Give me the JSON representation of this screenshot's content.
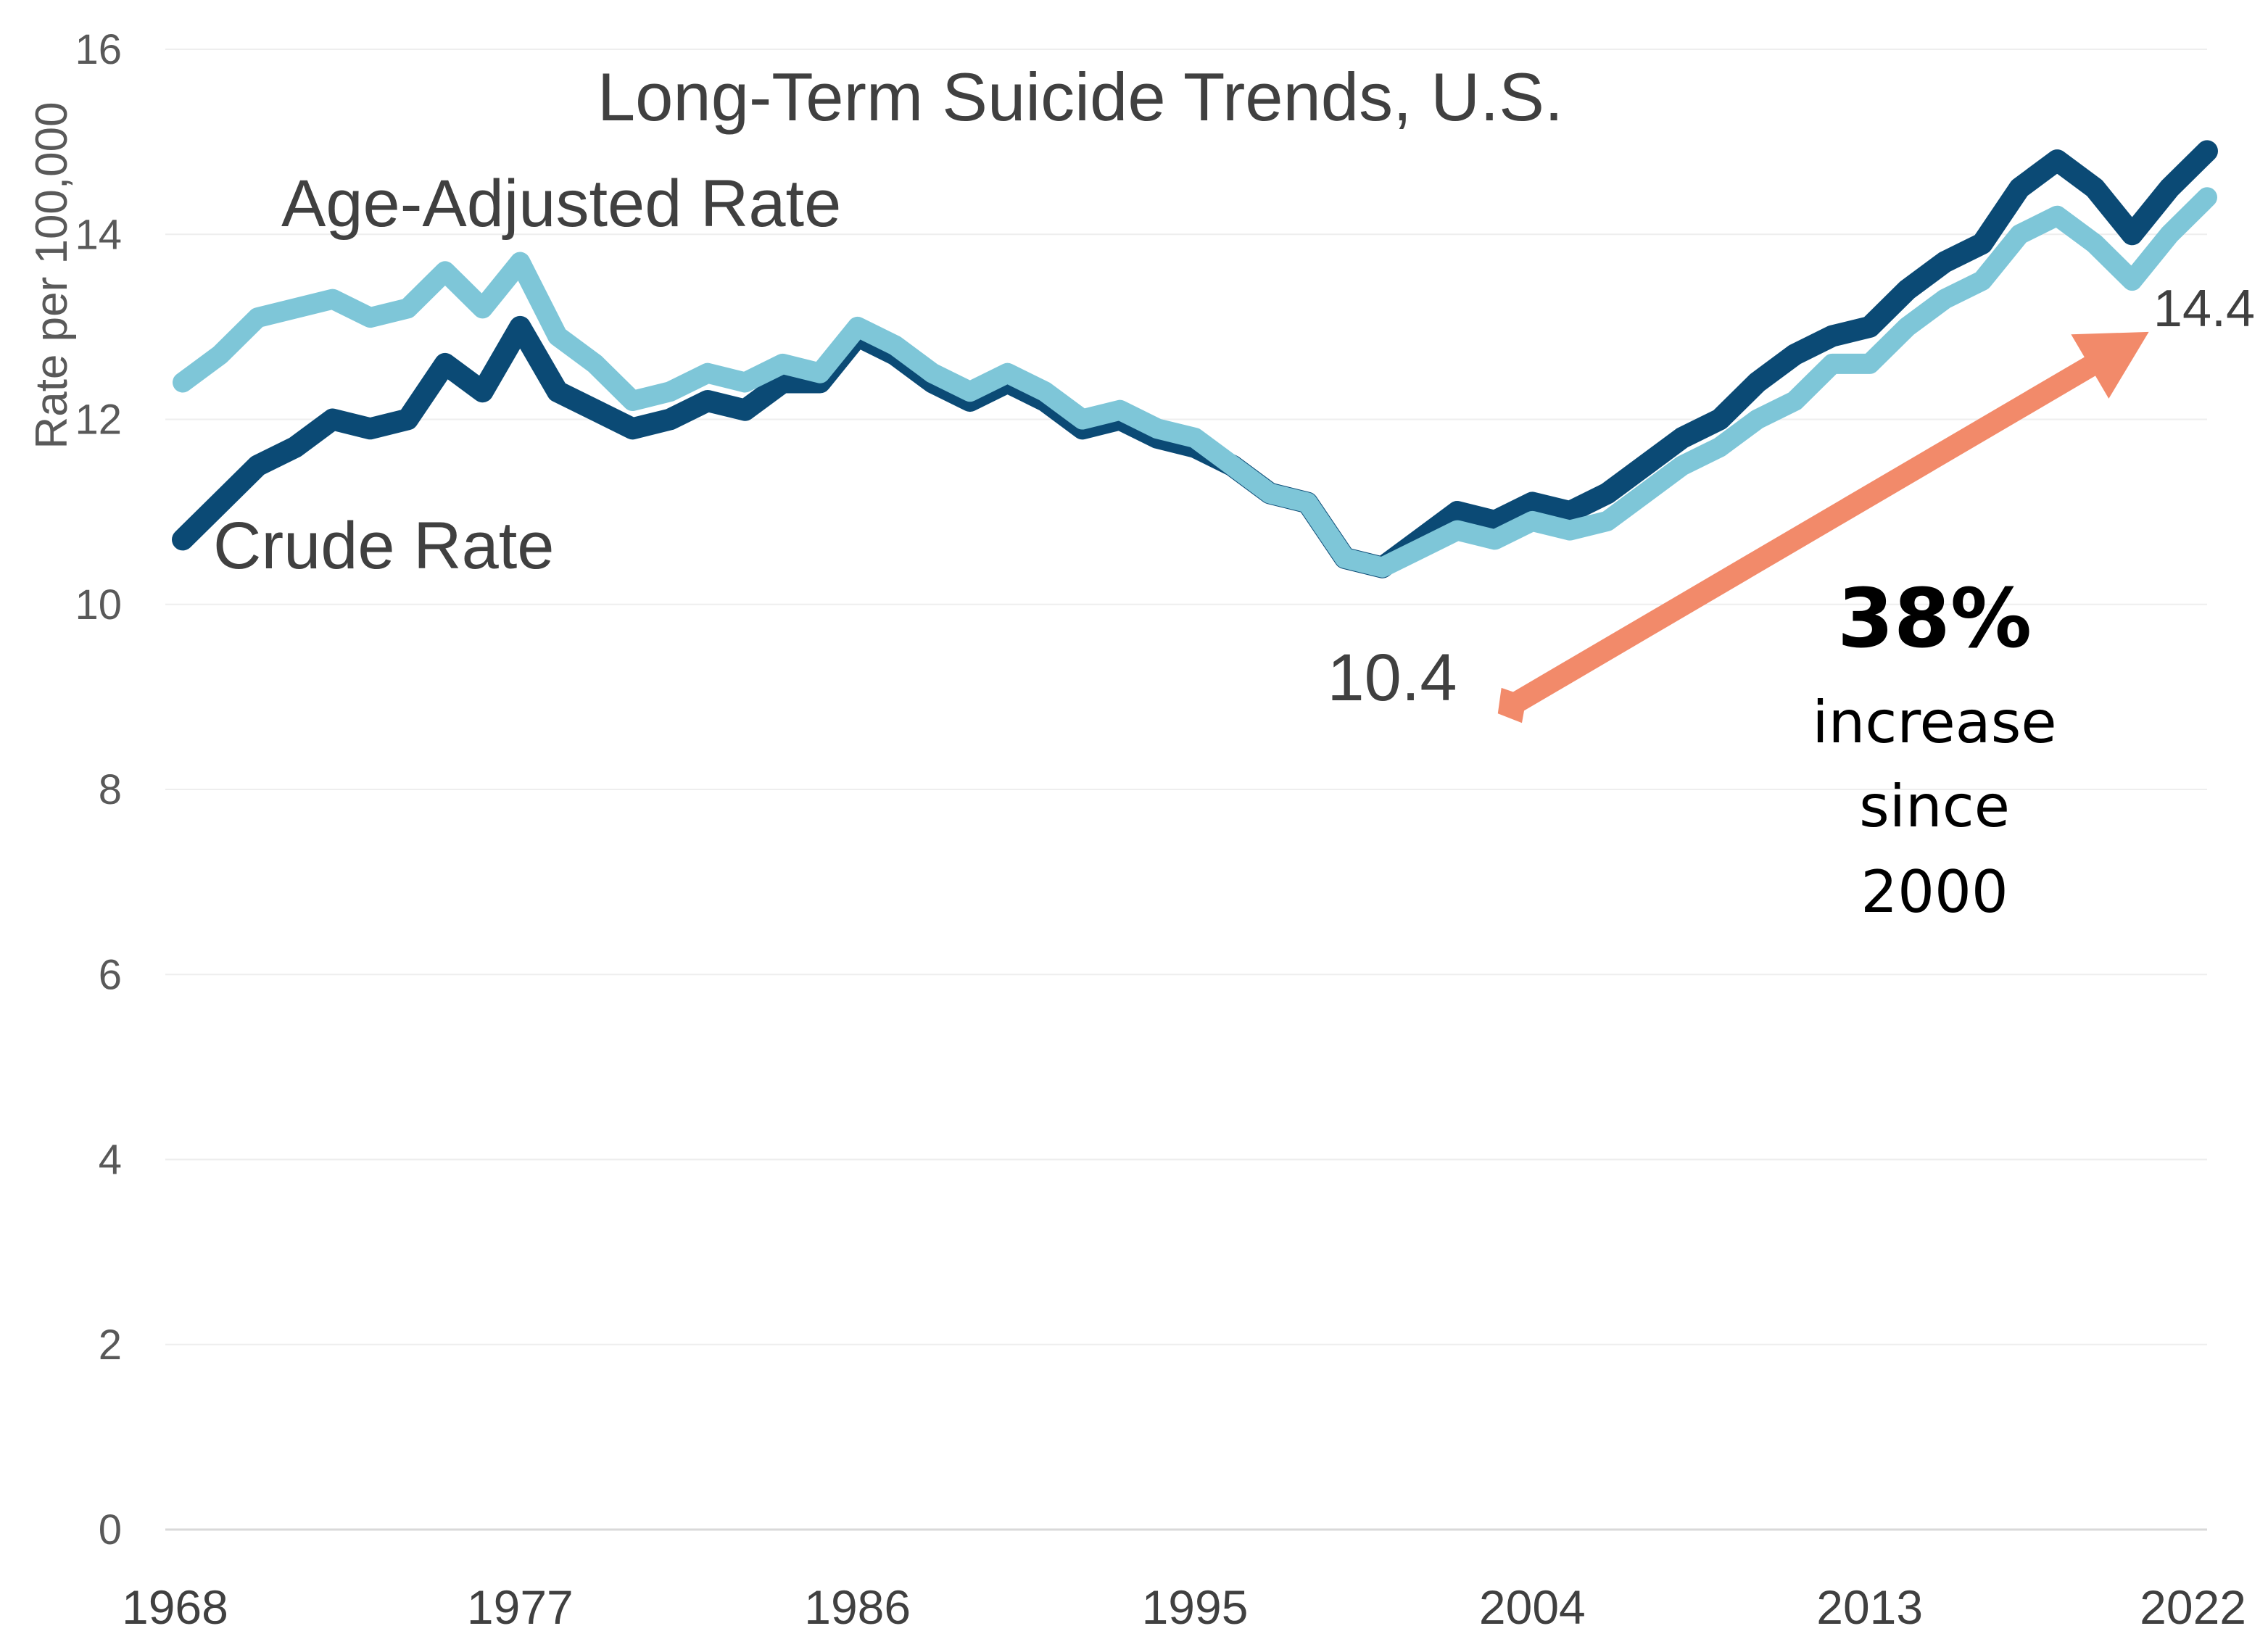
{
  "chart_data": {
    "type": "line",
    "title": "Long-Term Suicide Trends, U.S.",
    "xlabel": "",
    "ylabel": "Rate per 100,000",
    "xlim": [
      1968,
      2022
    ],
    "ylim": [
      0,
      16
    ],
    "x_ticks": [
      "1968",
      "1977",
      "1986",
      "1995",
      "2004",
      "2013",
      "2022"
    ],
    "y_ticks": [
      "0",
      "2",
      "4",
      "6",
      "8",
      "10",
      "12",
      "14",
      "16"
    ],
    "grid": "horizontal",
    "legend": "none",
    "x": [
      1968,
      1969,
      1970,
      1971,
      1972,
      1973,
      1974,
      1975,
      1976,
      1977,
      1978,
      1979,
      1980,
      1981,
      1982,
      1983,
      1984,
      1985,
      1986,
      1987,
      1988,
      1989,
      1990,
      1991,
      1992,
      1993,
      1994,
      1995,
      1996,
      1997,
      1998,
      1999,
      2000,
      2001,
      2002,
      2003,
      2004,
      2005,
      2006,
      2007,
      2008,
      2009,
      2010,
      2011,
      2012,
      2013,
      2014,
      2015,
      2016,
      2017,
      2018,
      2019,
      2020,
      2021,
      2022
    ],
    "series": [
      {
        "name": "Crude Rate",
        "color": "#0b4a75",
        "values": [
          10.7,
          11.1,
          11.5,
          11.7,
          12.0,
          11.9,
          12.0,
          12.6,
          12.3,
          13.0,
          12.3,
          12.1,
          11.9,
          12.0,
          12.2,
          12.1,
          12.4,
          12.4,
          12.9,
          12.7,
          12.4,
          12.2,
          12.4,
          12.2,
          11.9,
          12.0,
          11.8,
          11.7,
          11.5,
          11.2,
          11.1,
          10.5,
          10.4,
          10.7,
          11.0,
          10.9,
          11.1,
          11.0,
          11.2,
          11.5,
          11.8,
          12.0,
          12.4,
          12.7,
          12.9,
          13.0,
          13.4,
          13.7,
          13.9,
          14.5,
          14.8,
          14.5,
          14.0,
          14.5,
          14.9
        ]
      },
      {
        "name": "Age-Adjusted Rate",
        "color": "#7ec6d8",
        "values": [
          12.4,
          12.7,
          13.1,
          13.2,
          13.3,
          13.1,
          13.2,
          13.6,
          13.2,
          13.7,
          12.9,
          12.6,
          12.2,
          12.3,
          12.5,
          12.4,
          12.6,
          12.5,
          13.0,
          12.8,
          12.5,
          12.3,
          12.5,
          12.3,
          12.0,
          12.1,
          11.9,
          11.8,
          11.5,
          11.2,
          11.1,
          10.5,
          10.4,
          10.6,
          10.8,
          10.7,
          10.9,
          10.8,
          10.9,
          11.2,
          11.5,
          11.7,
          12.0,
          12.2,
          12.6,
          12.6,
          13.0,
          13.3,
          13.5,
          14.0,
          14.2,
          13.9,
          13.5,
          14.0,
          14.4
        ]
      }
    ],
    "annotations": {
      "start_value": "10.4",
      "end_value": "14.4",
      "callout_percent": "38%",
      "callout_line1": "increase",
      "callout_line2": "since",
      "callout_line3": "2000",
      "arrow_from": [
        2000,
        10.4
      ],
      "arrow_to": [
        2022,
        14.4
      ],
      "arrow_color": "#f28a6a"
    }
  }
}
